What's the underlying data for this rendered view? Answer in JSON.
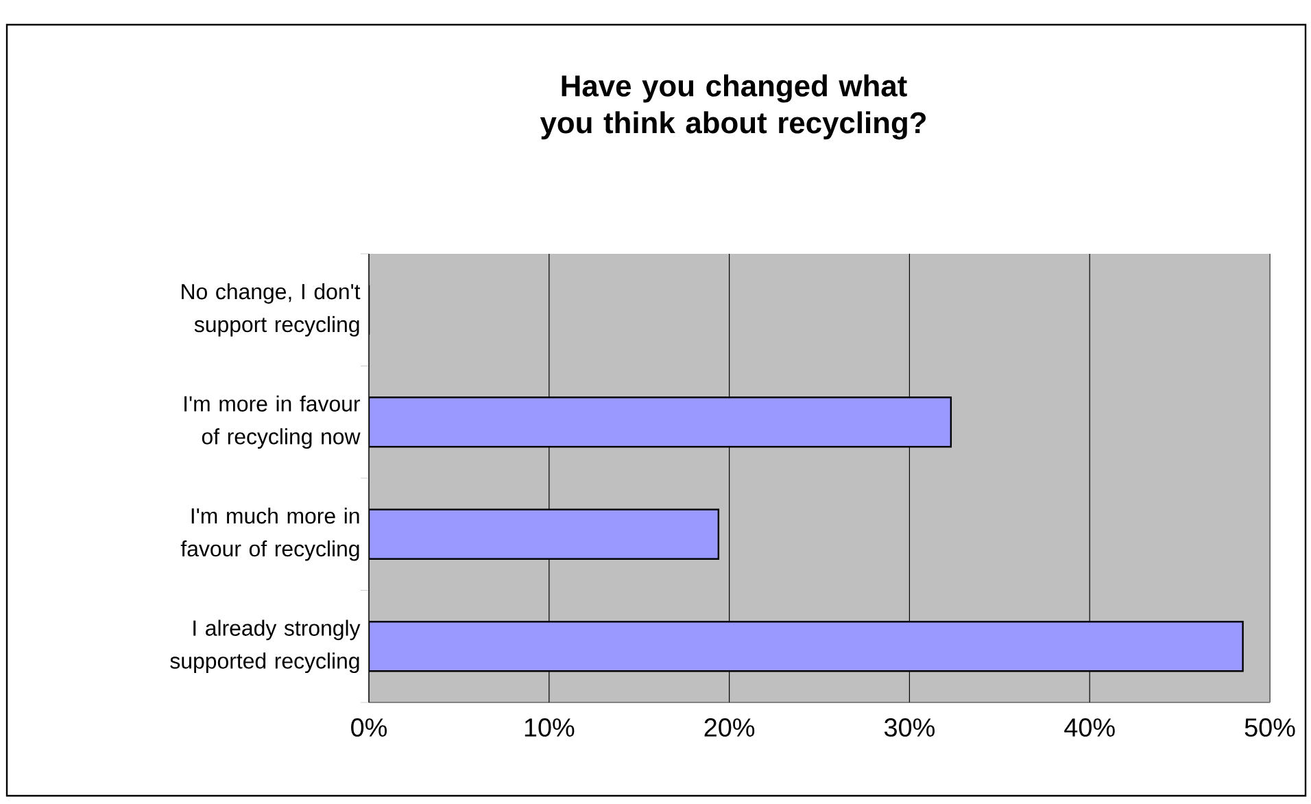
{
  "chart_data": {
    "type": "bar",
    "orientation": "horizontal",
    "title": "Have you changed what you think about recycling?",
    "categories": [
      "No change, I don't support recycling",
      "I'm more in favour of recycling now",
      "I'm much more in favour of recycling",
      "I already strongly supported recycling"
    ],
    "values": [
      0,
      32.3,
      19.4,
      48.5
    ],
    "color": "#9999ff",
    "xlim": [
      0,
      50
    ],
    "xticks": [
      {
        "value": 0,
        "label": "0%"
      },
      {
        "value": 10,
        "label": "10%"
      },
      {
        "value": 20,
        "label": "20%"
      },
      {
        "value": 30,
        "label": "30%"
      },
      {
        "value": 40,
        "label": "40%"
      },
      {
        "value": 50,
        "label": "50%"
      }
    ],
    "grid": "x"
  }
}
